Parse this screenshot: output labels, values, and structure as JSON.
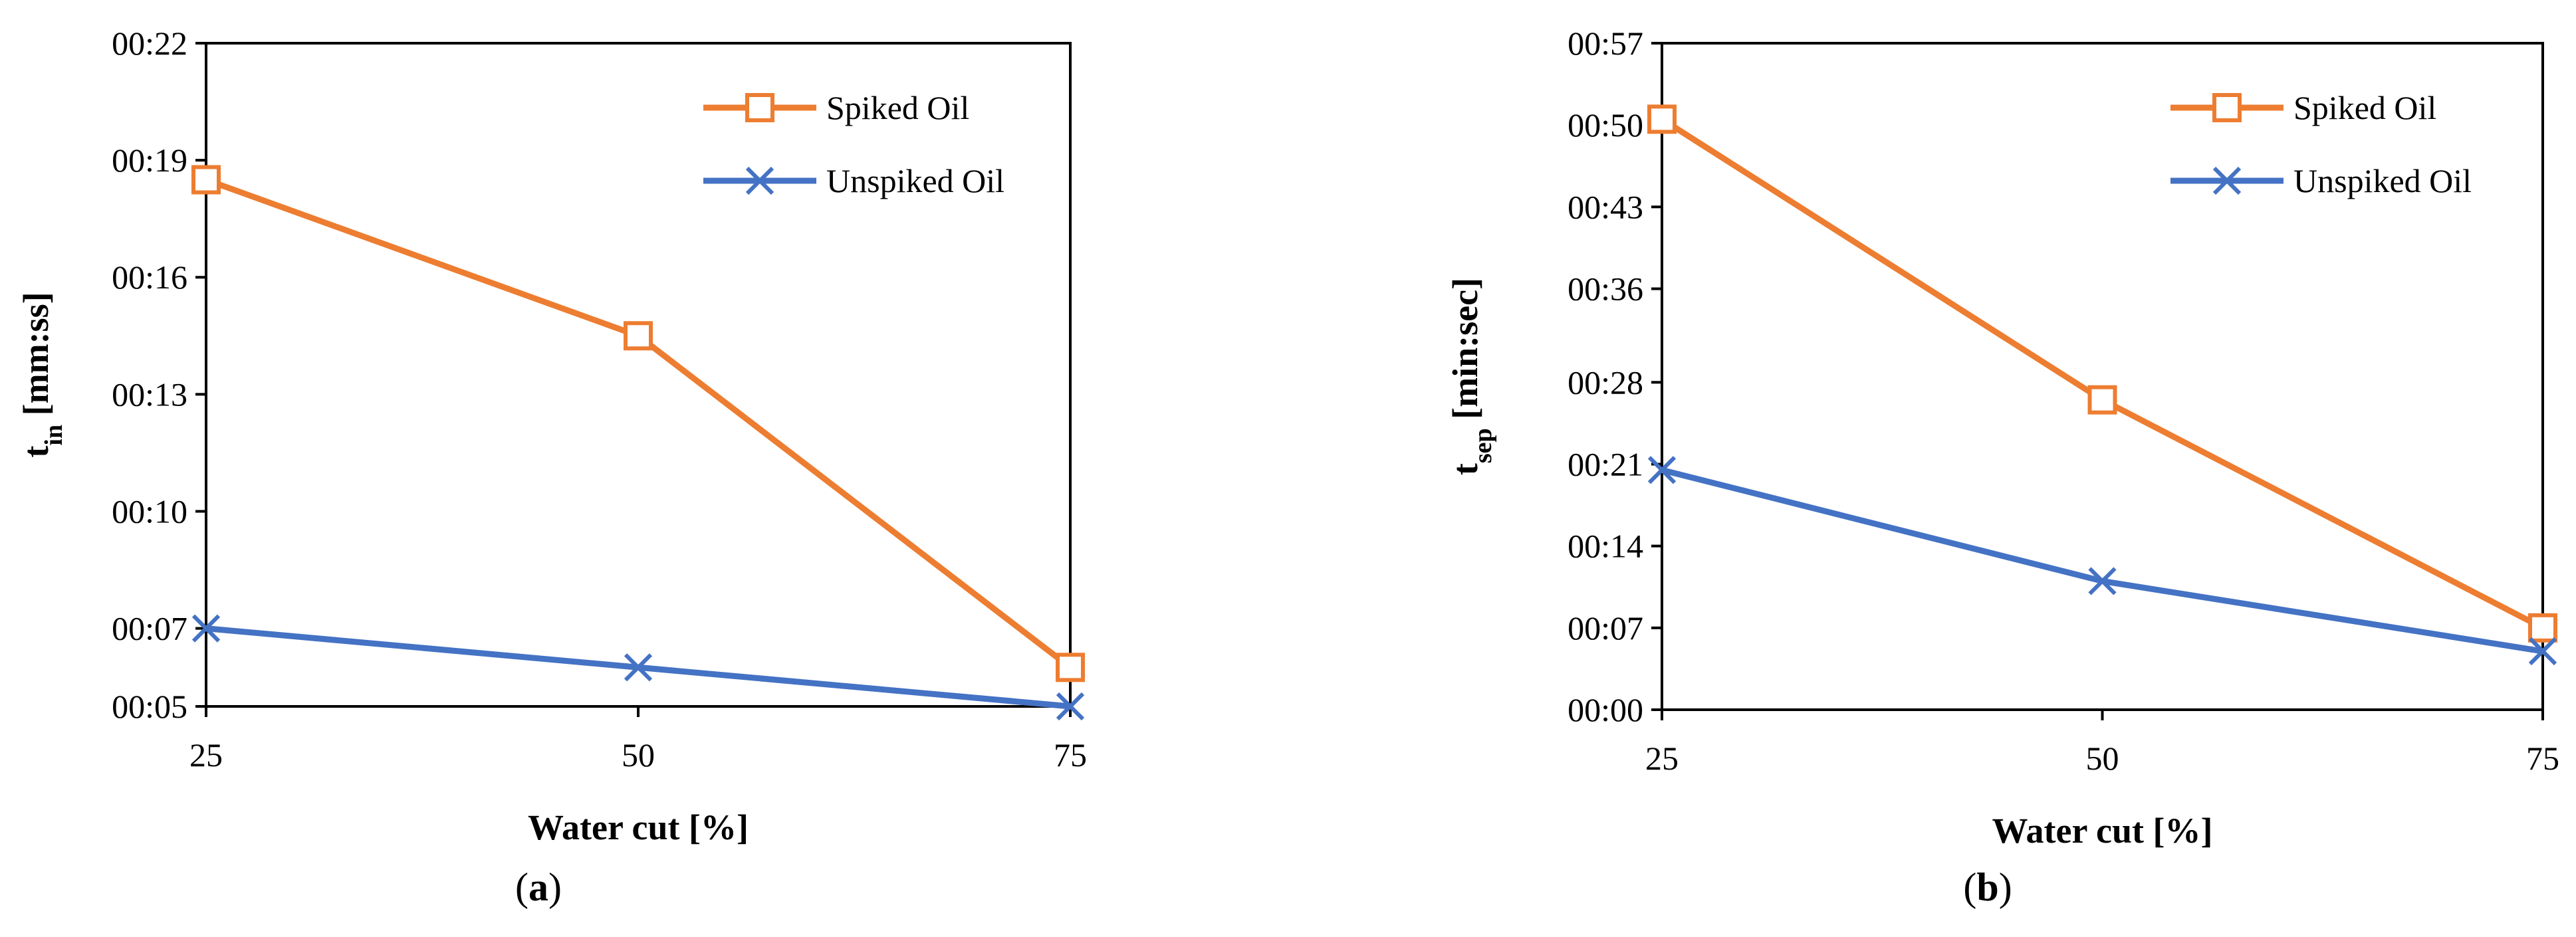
{
  "chart_data": [
    {
      "type": "line",
      "panel": "a",
      "caption_letter": "a",
      "xlabel": "Water cut [%]",
      "ylabel_main": "t",
      "ylabel_sub": "in",
      "ylabel_unit": " [mm:ss]",
      "categories": [
        "25",
        "50",
        "75"
      ],
      "x": [
        25,
        50,
        75
      ],
      "xlim": [
        25,
        75
      ],
      "ylim": [
        5,
        22
      ],
      "yticks": [
        5,
        7,
        10,
        13,
        16,
        19,
        22
      ],
      "ytick_labels": [
        "00:05",
        "00:07",
        "00:10",
        "00:13",
        "00:16",
        "00:19",
        "00:22"
      ],
      "legend_position": "top-right",
      "series": [
        {
          "name": "Spiked Oil",
          "marker": "square",
          "color": "#ED7D31",
          "values": [
            18.5,
            14.5,
            6.0
          ]
        },
        {
          "name": "Unspiked Oil",
          "marker": "x",
          "color": "#4472C4",
          "values": [
            7.0,
            6.0,
            5.0
          ]
        }
      ]
    },
    {
      "type": "line",
      "panel": "b",
      "caption_letter": "b",
      "xlabel": "Water cut [%]",
      "ylabel_main": "t",
      "ylabel_sub": "sep",
      "ylabel_unit": " [min:sec]",
      "categories": [
        "25",
        "50",
        "75"
      ],
      "x": [
        25,
        50,
        75
      ],
      "xlim": [
        25,
        75
      ],
      "ylim": [
        0,
        57
      ],
      "yticks": [
        0,
        7,
        14,
        21,
        28,
        36,
        43,
        50,
        57
      ],
      "ytick_labels": [
        "00:00",
        "00:07",
        "00:14",
        "00:21",
        "00:28",
        "00:36",
        "00:43",
        "00:50",
        "00:57"
      ],
      "legend_position": "top-right",
      "series": [
        {
          "name": "Spiked Oil",
          "marker": "square",
          "color": "#ED7D31",
          "values": [
            50.5,
            26.5,
            7.0
          ]
        },
        {
          "name": "Unspiked Oil",
          "marker": "x",
          "color": "#4472C4",
          "values": [
            20.5,
            11.0,
            5.0
          ]
        }
      ]
    }
  ]
}
